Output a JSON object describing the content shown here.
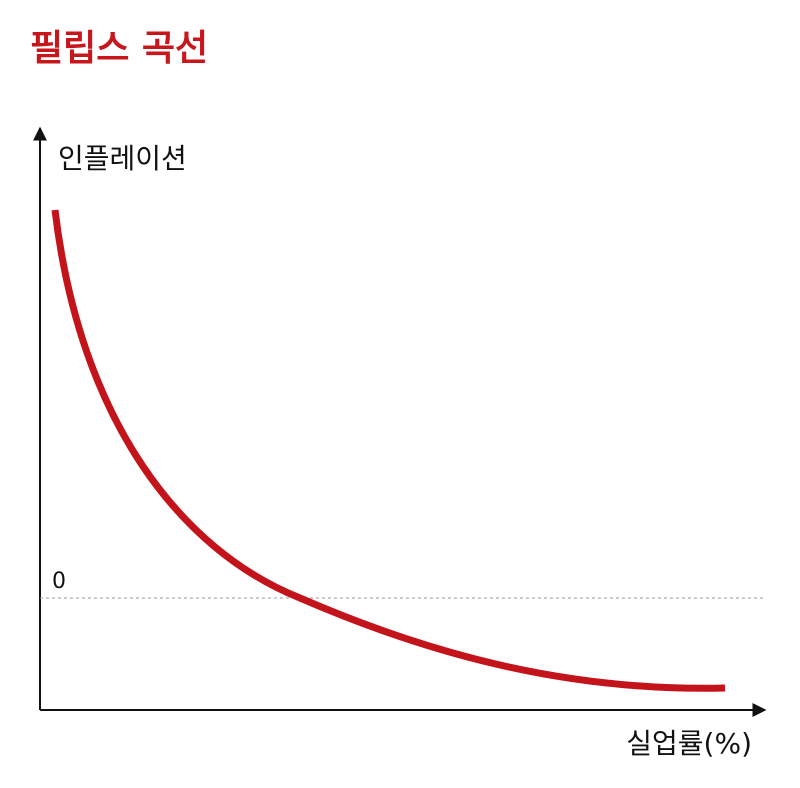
{
  "title": "필립스 곡선",
  "y_axis_label": "인플레이션",
  "x_axis_label": "실업률(%)",
  "zero_label": "0"
}
